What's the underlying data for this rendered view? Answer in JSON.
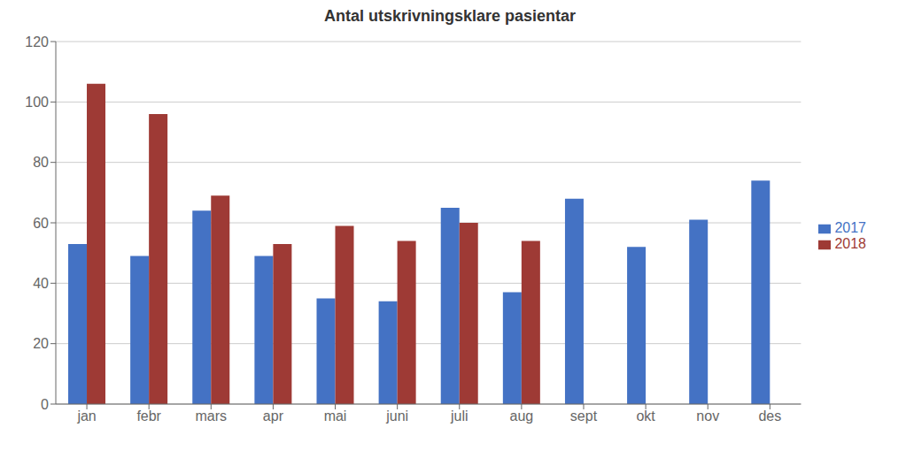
{
  "chart_data": {
    "type": "bar",
    "title": "Antal utskrivningsklare pasientar",
    "categories": [
      "jan",
      "febr",
      "mars",
      "apr",
      "mai",
      "juni",
      "juli",
      "aug",
      "sept",
      "okt",
      "nov",
      "des"
    ],
    "series": [
      {
        "name": "2017",
        "color": "#4472C4",
        "values": [
          53,
          49,
          64,
          49,
          35,
          34,
          65,
          37,
          68,
          52,
          61,
          74
        ]
      },
      {
        "name": "2018",
        "color": "#9E3A35",
        "values": [
          106,
          96,
          69,
          53,
          59,
          54,
          60,
          54,
          null,
          null,
          null,
          null
        ]
      }
    ],
    "ylim": [
      0,
      120
    ],
    "yticks": [
      0,
      20,
      40,
      60,
      80,
      100,
      120
    ],
    "grid": true,
    "legend": "right"
  }
}
